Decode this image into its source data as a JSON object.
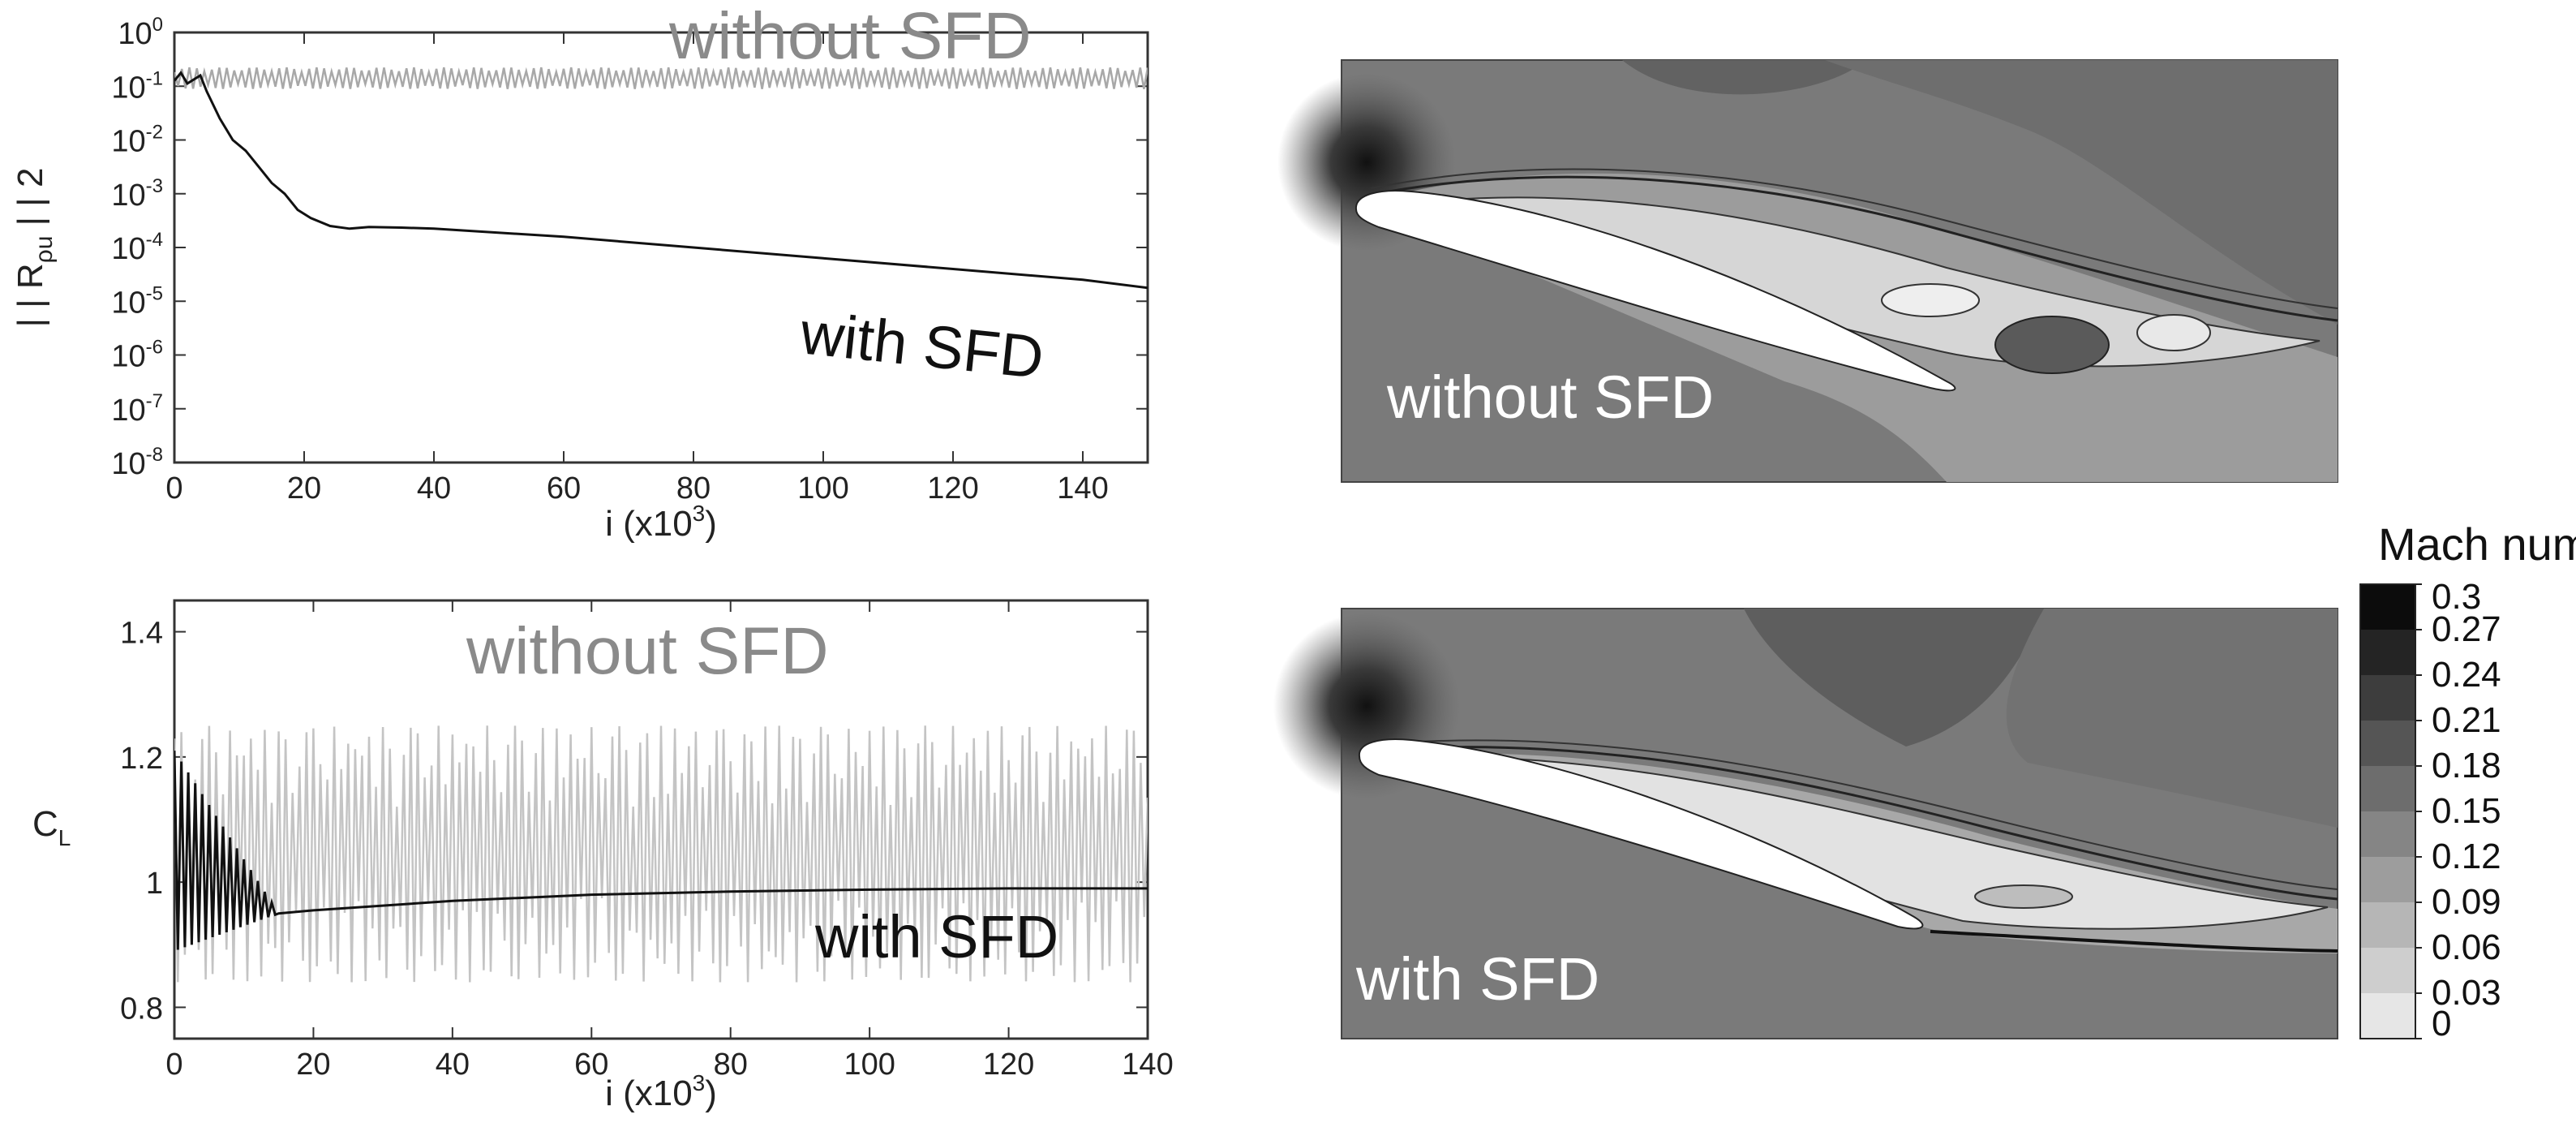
{
  "chart_data": [
    {
      "type": "line",
      "ylabel": "| | R",
      "ylabel_sub": "ρu",
      "ylabel_tail": " | | 2",
      "xlabel": "i (x10",
      "xlabel_sup": "3",
      "xlabel_tail": ")",
      "xlim": [
        0,
        150
      ],
      "ylim_log10": [
        -8,
        0
      ],
      "yscale": "log",
      "xticks": [
        "0",
        "20",
        "40",
        "60",
        "80",
        "100",
        "120",
        "140"
      ],
      "xtick_values": [
        0,
        20,
        40,
        60,
        80,
        100,
        120,
        140
      ],
      "yticks": [
        "10",
        "10",
        "10",
        "10",
        "10",
        "10",
        "10",
        "10",
        "10"
      ],
      "ytick_exponents": [
        "0",
        "-1",
        "-2",
        "-3",
        "-4",
        "-5",
        "-6",
        "-7",
        "-8"
      ],
      "series": [
        {
          "name": "without SFD",
          "color": "#a8a8a8",
          "kind": "oscillating",
          "mean_log10": -0.85,
          "amplitude_log10": 0.2,
          "x_start": 0,
          "x_end": 150
        },
        {
          "name": "with SFD",
          "color": "#111111",
          "x": [
            0,
            1,
            2,
            4,
            5,
            7,
            9,
            11,
            13,
            15,
            17,
            19,
            21,
            24,
            27,
            30,
            35,
            40,
            60,
            80,
            100,
            120,
            140,
            150
          ],
          "y_log10": [
            -0.9,
            -0.75,
            -0.95,
            -0.8,
            -1.1,
            -1.6,
            -2.0,
            -2.2,
            -2.5,
            -2.8,
            -3.0,
            -3.3,
            -3.45,
            -3.6,
            -3.65,
            -3.62,
            -3.63,
            -3.65,
            -3.8,
            -4.0,
            -4.2,
            -4.4,
            -4.6,
            -4.75
          ]
        }
      ],
      "annotations": [
        {
          "text": "without SFD",
          "color": "#8a8a8a"
        },
        {
          "text": "with SFD",
          "color": "#111111"
        }
      ]
    },
    {
      "type": "line",
      "ylabel": "C",
      "ylabel_sub": "L",
      "xlabel": "i (x10",
      "xlabel_sup": "3",
      "xlabel_tail": ")",
      "xlim": [
        0,
        140
      ],
      "ylim": [
        0.75,
        1.45
      ],
      "xticks": [
        "0",
        "20",
        "40",
        "60",
        "80",
        "100",
        "120",
        "140"
      ],
      "xtick_values": [
        0,
        20,
        40,
        60,
        80,
        100,
        120,
        140
      ],
      "yticks": [
        "0.8",
        "1",
        "1.2",
        "1.4"
      ],
      "ytick_values": [
        0.8,
        1.0,
        1.2,
        1.4
      ],
      "series": [
        {
          "name": "without SFD",
          "color": "#c4c4c4",
          "kind": "oscillating",
          "mean": 1.05,
          "amplitude": 0.2,
          "x_start": 0,
          "x_end": 140
        },
        {
          "name": "with SFD",
          "color": "#111111",
          "x": [
            0,
            15,
            20,
            40,
            60,
            80,
            100,
            120,
            140
          ],
          "y": [
            1.05,
            0.95,
            0.955,
            0.97,
            0.98,
            0.985,
            0.988,
            0.99,
            0.99
          ],
          "initial_oscillation_amplitude": 0.16,
          "initial_oscillation_end": 15
        }
      ],
      "annotations": [
        {
          "text": "without SFD",
          "color": "#8a8a8a"
        },
        {
          "text": "with SFD",
          "color": "#111111"
        }
      ]
    },
    {
      "type": "heatmap",
      "panel": "contour-without-sfd",
      "label": "without SFD"
    },
    {
      "type": "heatmap",
      "panel": "contour-with-sfd",
      "label": "with SFD"
    }
  ],
  "colorbar": {
    "title": "Mach number",
    "ticks": [
      "0.3",
      "0.27",
      "0.24",
      "0.21",
      "0.18",
      "0.15",
      "0.12",
      "0.09",
      "0.06",
      "0.03",
      "0"
    ],
    "tick_values": [
      0.3,
      0.27,
      0.24,
      0.21,
      0.18,
      0.15,
      0.12,
      0.09,
      0.06,
      0.03,
      0
    ],
    "color_low": "#f2f2f2",
    "color_high": "#000000"
  }
}
